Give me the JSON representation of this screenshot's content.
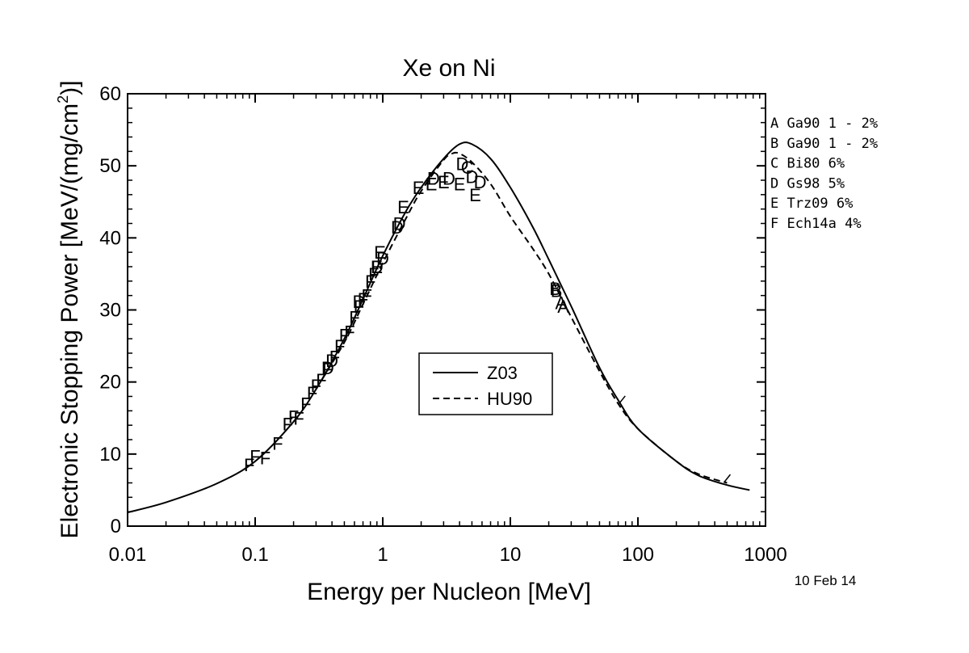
{
  "chart_data": {
    "type": "scatter",
    "title": "Xe on Ni",
    "xlabel": "Energy per Nucleon [MeV]",
    "ylabel_main": "Electronic Stopping Power [MeV/(mg/cm",
    "ylabel_sup": "2",
    "ylabel_end": ")]",
    "date_stamp": "10 Feb 14",
    "x_scale": "log",
    "xlim": [
      0.01,
      1000
    ],
    "ylim": [
      0,
      60
    ],
    "x_ticks": [
      {
        "value": 0.01,
        "label": "0.01"
      },
      {
        "value": 0.1,
        "label": "0.1"
      },
      {
        "value": 1,
        "label": "1"
      },
      {
        "value": 10,
        "label": "10"
      },
      {
        "value": 100,
        "label": "100"
      },
      {
        "value": 1000,
        "label": "1000"
      }
    ],
    "y_ticks": [
      {
        "value": 0,
        "label": "0"
      },
      {
        "value": 10,
        "label": "10"
      },
      {
        "value": 20,
        "label": "20"
      },
      {
        "value": 30,
        "label": "30"
      },
      {
        "value": 40,
        "label": "40"
      },
      {
        "value": 50,
        "label": "50"
      },
      {
        "value": 60,
        "label": "60"
      }
    ],
    "legend_position": "center",
    "lines": [
      {
        "name": "Z03",
        "style": "solid",
        "x": [
          0.01,
          0.02,
          0.05,
          0.1,
          0.2,
          0.3,
          0.5,
          0.7,
          1,
          1.5,
          2,
          3,
          4,
          5,
          7,
          10,
          15,
          20,
          30,
          50,
          70,
          100,
          200,
          300,
          500,
          750
        ],
        "y": [
          1.9,
          3.3,
          5.9,
          9.0,
          14.5,
          19.0,
          26.0,
          31.5,
          37.5,
          43.5,
          47.0,
          51.0,
          53.0,
          53.0,
          51.0,
          47.0,
          41.5,
          37.0,
          30.5,
          22.0,
          17.5,
          13.5,
          9.0,
          7.0,
          5.7,
          5.0
        ]
      },
      {
        "name": "HU90",
        "style": "dashed",
        "x": [
          0.3,
          0.5,
          0.7,
          1,
          1.5,
          2,
          3,
          3.5,
          4,
          5,
          7,
          10,
          15,
          20,
          30,
          50,
          70,
          100,
          200,
          300,
          500
        ],
        "y": [
          19.0,
          25.5,
          30.8,
          36.5,
          42.5,
          46.5,
          50.8,
          51.7,
          51.7,
          50.5,
          47.5,
          43.0,
          38.5,
          35.0,
          29.0,
          21.5,
          17.0,
          13.5,
          9.0,
          7.2,
          6.0
        ]
      }
    ],
    "extra_marks": [
      {
        "x": 75,
        "y": 17.5
      },
      {
        "x": 500,
        "y": 6.6
      }
    ],
    "series": [
      {
        "name": "A",
        "label": "A Ga90  1 - 2%",
        "x": [
          25,
          26
        ],
        "y": [
          31.0,
          30.5
        ]
      },
      {
        "name": "B",
        "label": "B Ga90  1 - 2%",
        "x": [
          22.5,
          23
        ],
        "y": [
          33.0,
          32.7
        ]
      },
      {
        "name": "C",
        "label": "C Bi80  6%",
        "x": [
          4.6
        ],
        "y": [
          49.8
        ]
      },
      {
        "name": "D",
        "label": "D Gs98  5%",
        "x": [
          0.37,
          0.4,
          0.65,
          0.9,
          1.0,
          1.3,
          1.35,
          2.5,
          3.3,
          4.2,
          5.0,
          5.8
        ],
        "y": [
          22.0,
          23.0,
          31.2,
          36.0,
          37.2,
          41.5,
          42.0,
          48.3,
          48.3,
          50.3,
          48.5,
          47.8
        ]
      },
      {
        "name": "E",
        "label": "E Trz09 6%",
        "x": [
          0.9,
          0.95,
          1.45,
          1.9,
          2.4,
          3.0,
          4.0,
          5.3
        ],
        "y": [
          36.0,
          38.0,
          44.3,
          47.0,
          47.5,
          47.8,
          47.5,
          46.0
        ]
      },
      {
        "name": "F",
        "label": "F Ech14a 4%",
        "x": [
          0.09,
          0.1,
          0.12,
          0.15,
          0.18,
          0.2,
          0.22,
          0.25,
          0.28,
          0.3,
          0.33,
          0.37,
          0.42,
          0.46,
          0.5,
          0.55,
          0.6,
          0.65,
          0.7,
          0.75,
          0.8,
          0.85
        ],
        "y": [
          8.5,
          9.7,
          9.5,
          11.5,
          14.2,
          15.2,
          15.0,
          17.0,
          18.5,
          19.5,
          20.3,
          21.8,
          23.5,
          25.0,
          26.5,
          27.0,
          29.0,
          30.5,
          31.5,
          32.0,
          34.0,
          35.0
        ]
      }
    ]
  },
  "colors": {
    "axis": "#000000",
    "line": "#000000",
    "background": "#ffffff"
  }
}
